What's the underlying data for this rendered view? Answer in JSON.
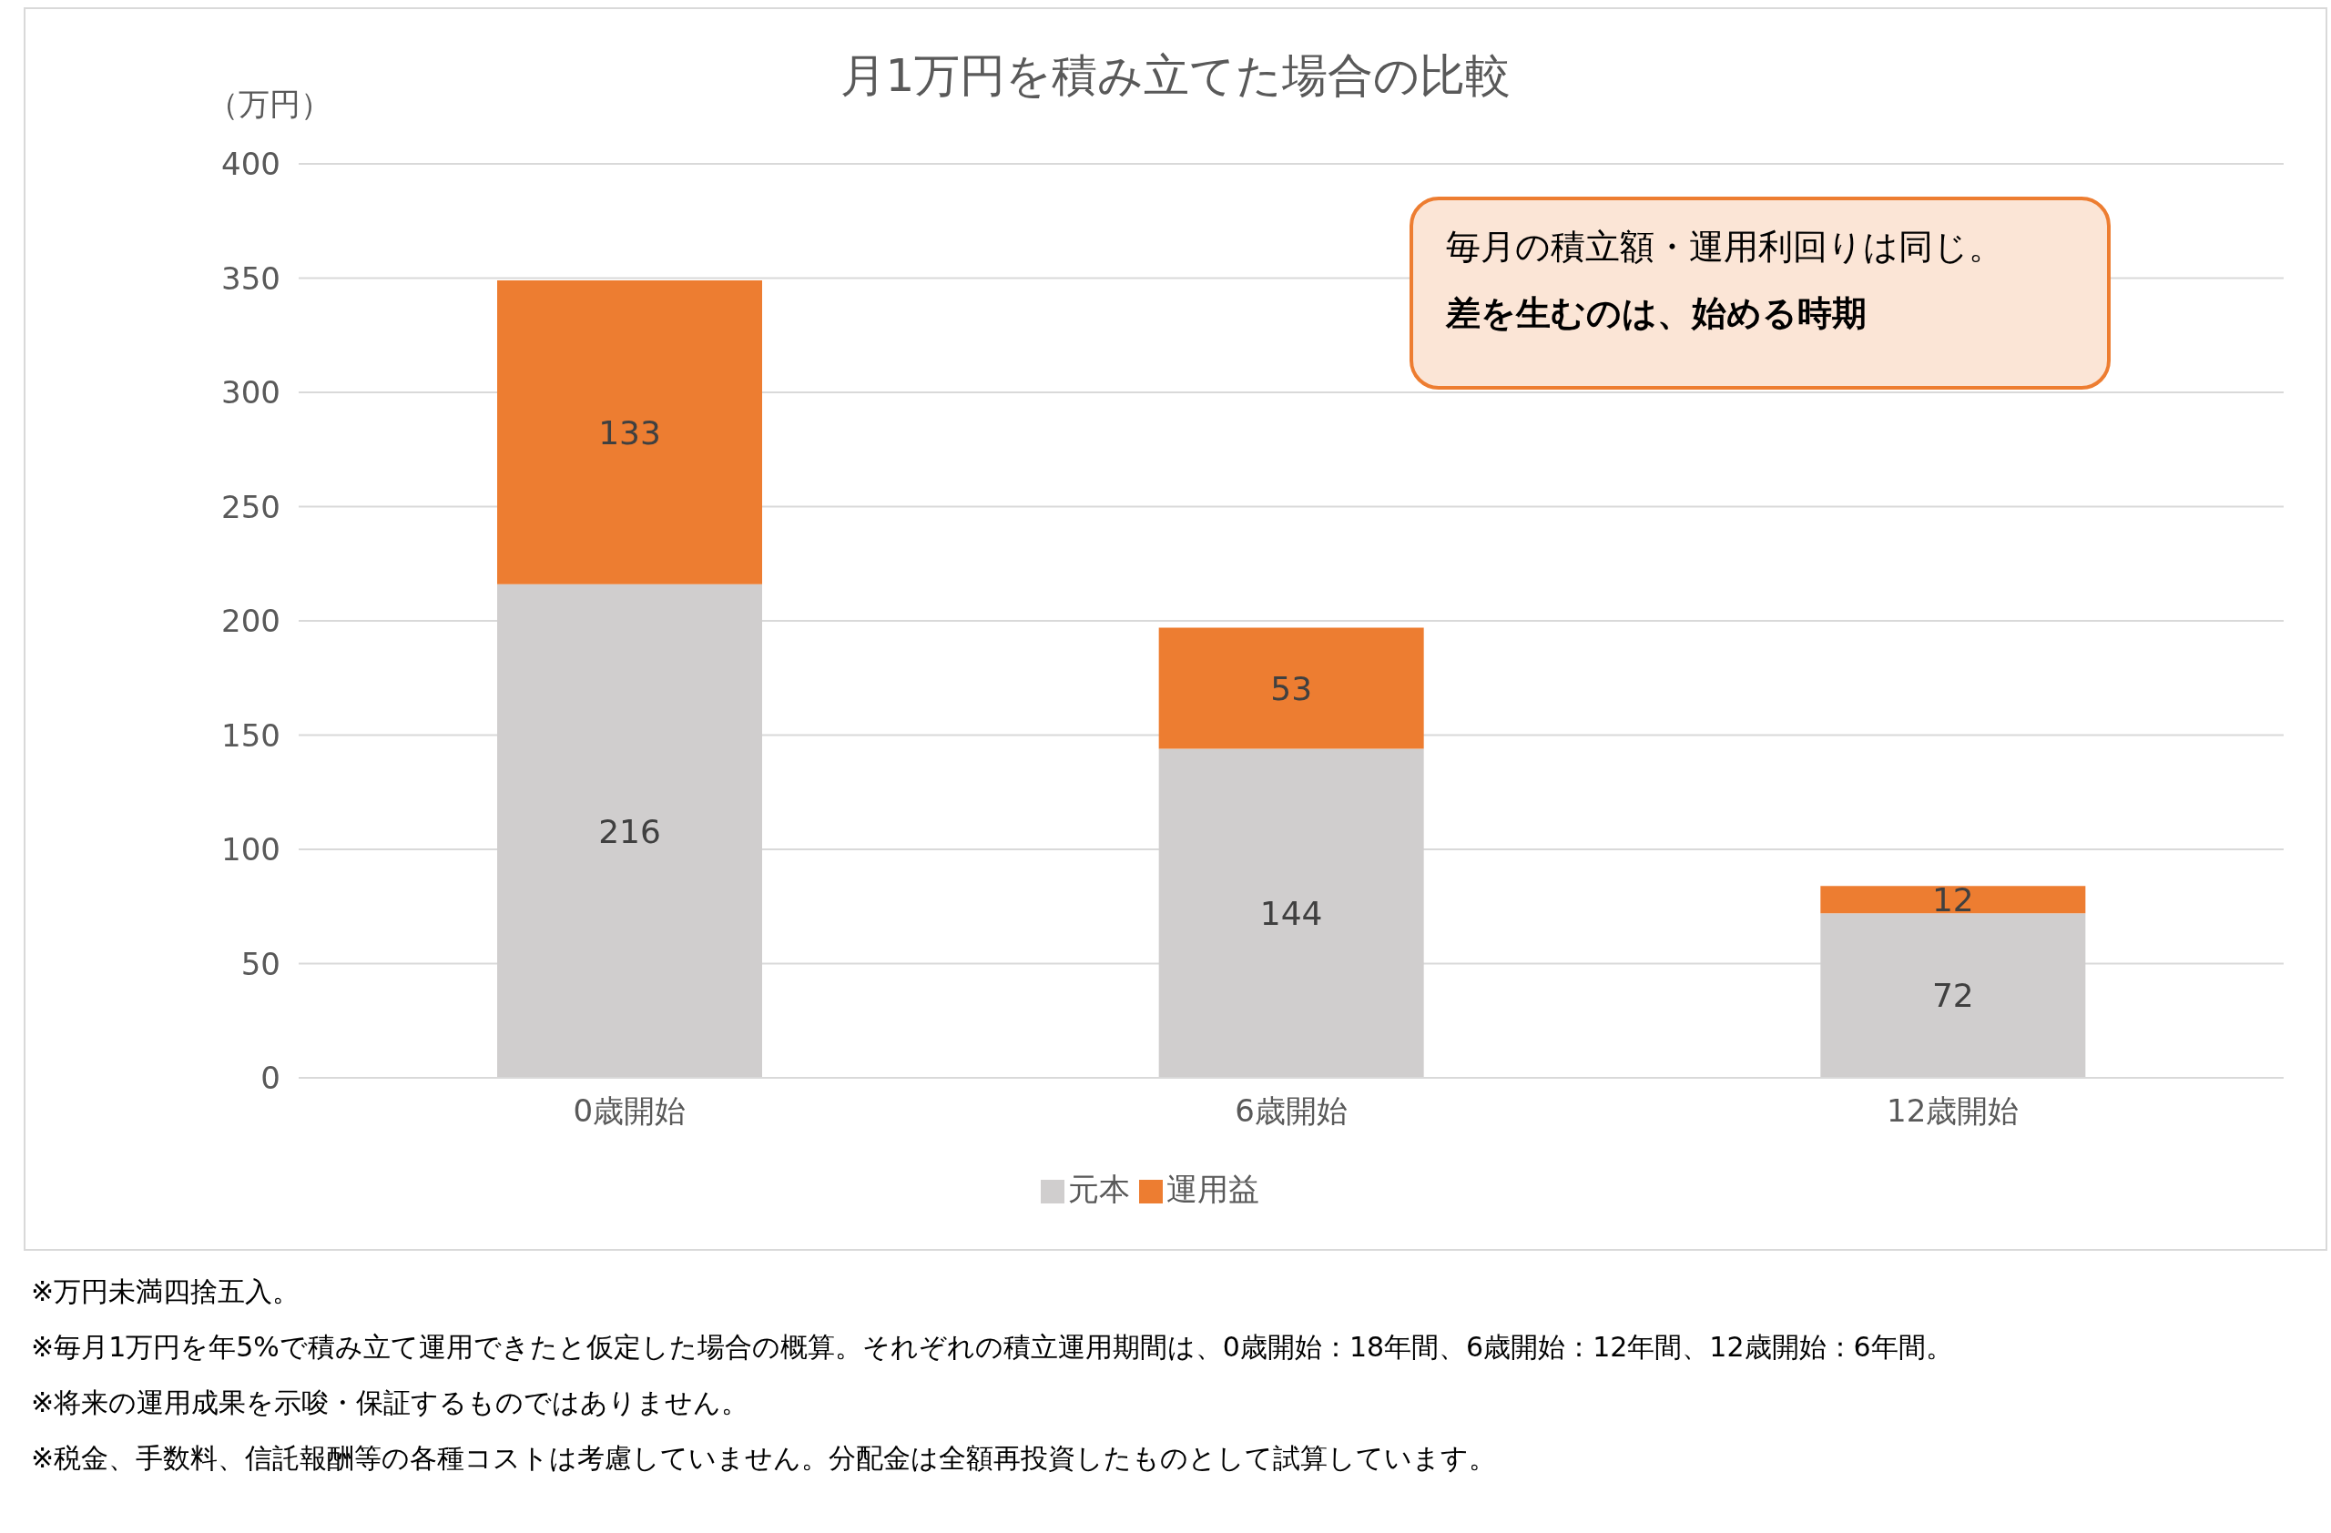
{
  "chart_data": {
    "type": "bar",
    "title": "月1万円を積み立てた場合の比較",
    "ylabel": "（万円）",
    "categories": [
      "0歳開始",
      "6歳開始",
      "12歳開始"
    ],
    "series": [
      {
        "name": "元本",
        "color": "#d0cece",
        "values": [
          216,
          144,
          72
        ]
      },
      {
        "name": "運用益",
        "color": "#ed7d31",
        "values": [
          133,
          53,
          12
        ]
      }
    ],
    "stacked": true,
    "data_labels": true,
    "ylim": [
      0,
      400
    ],
    "yticks": [
      0,
      50,
      100,
      150,
      200,
      250,
      300,
      350,
      400
    ],
    "grid": "y",
    "legend": "bottom",
    "annotations": [
      "毎月の積立額・運用利回りは同じ。",
      "差を生むのは、始める時期",
      "※万円未満四捨五入。",
      "※毎月1万円を年5%で積み立て運用できたと仮定した場合の概算。それぞれの積立運用期間は、0歳開始：18年間、6歳開始：12年間、12歳開始：6年間。",
      "※将来の運用成果を示唆・保証するものではありません。",
      "※税金、手数料、信託報酬等の各種コストは考慮していません。分配金は全額再投資したものとして試算しています。"
    ]
  }
}
